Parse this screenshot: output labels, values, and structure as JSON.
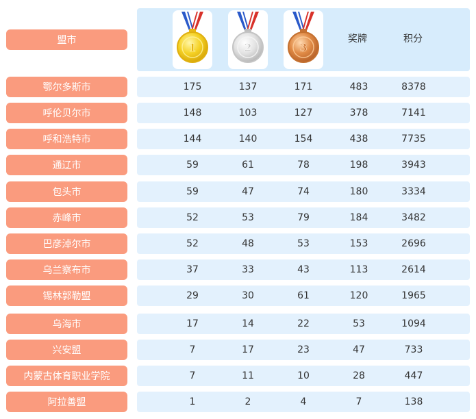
{
  "header": {
    "city_label": "盟市",
    "medal_icons": [
      "gold-medal-icon",
      "silver-medal-icon",
      "bronze-medal-icon"
    ],
    "medal_numbers": [
      "1",
      "2",
      "3"
    ],
    "medals_label": "奖牌",
    "score_label": "积分"
  },
  "colors": {
    "label_bg": "#fa9b7e",
    "row_bg": "#e3f1fd",
    "header_bg": "#d7ecfc"
  },
  "rows": [
    {
      "city": "鄂尔多斯市",
      "gold": "175",
      "silver": "137",
      "bronze": "171",
      "medals": "483",
      "score": "8378"
    },
    {
      "city": "呼伦贝尔市",
      "gold": "148",
      "silver": "103",
      "bronze": "127",
      "medals": "378",
      "score": "7141"
    },
    {
      "city": "呼和浩特市",
      "gold": "144",
      "silver": "140",
      "bronze": "154",
      "medals": "438",
      "score": "7735"
    },
    {
      "city": "通辽市",
      "gold": "59",
      "silver": "61",
      "bronze": "78",
      "medals": "198",
      "score": "3943"
    },
    {
      "city": "包头市",
      "gold": "59",
      "silver": "47",
      "bronze": "74",
      "medals": "180",
      "score": "3334"
    },
    {
      "city": "赤峰市",
      "gold": "52",
      "silver": "53",
      "bronze": "79",
      "medals": "184",
      "score": "3482"
    },
    {
      "city": "巴彦淖尔市",
      "gold": "52",
      "silver": "48",
      "bronze": "53",
      "medals": "153",
      "score": "2696"
    },
    {
      "city": "乌兰察布市",
      "gold": "37",
      "silver": "33",
      "bronze": "43",
      "medals": "113",
      "score": "2614"
    },
    {
      "city": "锡林郭勒盟",
      "gold": "29",
      "silver": "30",
      "bronze": "61",
      "medals": "120",
      "score": "1965"
    },
    {
      "city": "乌海市",
      "gold": "17",
      "silver": "14",
      "bronze": "22",
      "medals": "53",
      "score": "1094"
    },
    {
      "city": "兴安盟",
      "gold": "7",
      "silver": "17",
      "bronze": "23",
      "medals": "47",
      "score": "733"
    },
    {
      "city": "内蒙古体育职业学院",
      "gold": "7",
      "silver": "11",
      "bronze": "10",
      "medals": "28",
      "score": "447"
    },
    {
      "city": "阿拉善盟",
      "gold": "1",
      "silver": "2",
      "bronze": "4",
      "medals": "7",
      "score": "138"
    }
  ]
}
